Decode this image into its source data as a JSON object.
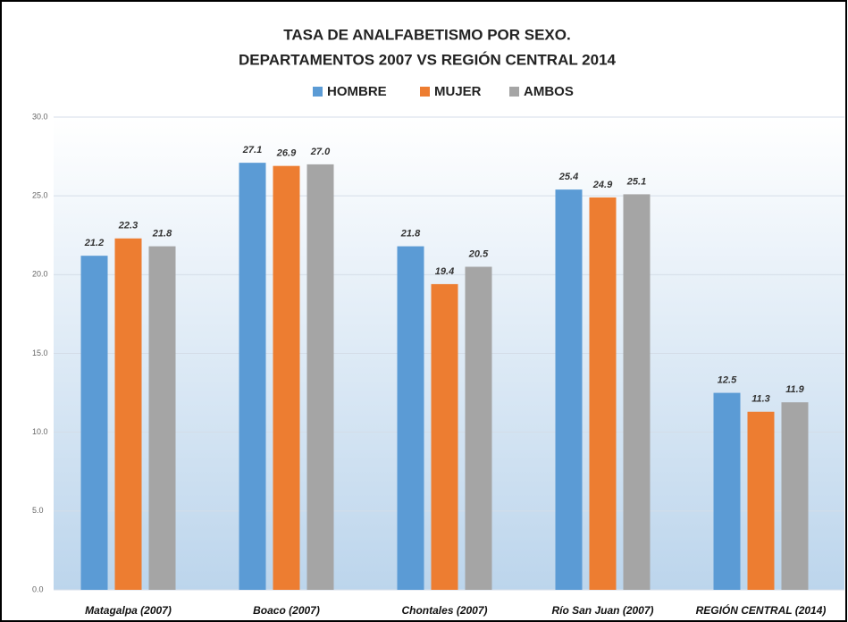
{
  "chart_data": {
    "type": "bar",
    "title": "TASA DE ANALFABETISMO POR SEXO.",
    "subtitle": "DEPARTAMENTOS 2007 VS REGIÓN CENTRAL 2014",
    "categories": [
      "Matagalpa (2007)",
      "Boaco (2007)",
      "Chontales (2007)",
      "Río San Juan (2007)",
      "REGIÓN CENTRAL (2014)"
    ],
    "series": [
      {
        "name": "HOMBRE",
        "color": "#5b9bd5",
        "values": [
          21.2,
          27.1,
          21.8,
          25.4,
          12.5
        ]
      },
      {
        "name": "MUJER",
        "color": "#ed7d31",
        "values": [
          22.3,
          26.9,
          19.4,
          24.9,
          11.3
        ]
      },
      {
        "name": "AMBOS",
        "color": "#a5a5a5",
        "values": [
          21.8,
          27.0,
          20.5,
          25.1,
          11.9
        ],
        "value_labels": [
          "21.8",
          "27.0",
          "20.5",
          "25.1",
          "11.9"
        ]
      }
    ],
    "ylim": [
      0,
      30
    ],
    "yticks": [
      {
        "value": 0,
        "label": "0.0"
      },
      {
        "value": 5,
        "label": "5.0"
      },
      {
        "value": 10,
        "label": "10.0"
      },
      {
        "value": 15,
        "label": "15.0"
      },
      {
        "value": 20,
        "label": "20.0"
      },
      {
        "value": 25,
        "label": "25.0"
      },
      {
        "value": 30,
        "label": "30.0"
      }
    ],
    "grid": true,
    "legend": "top"
  }
}
